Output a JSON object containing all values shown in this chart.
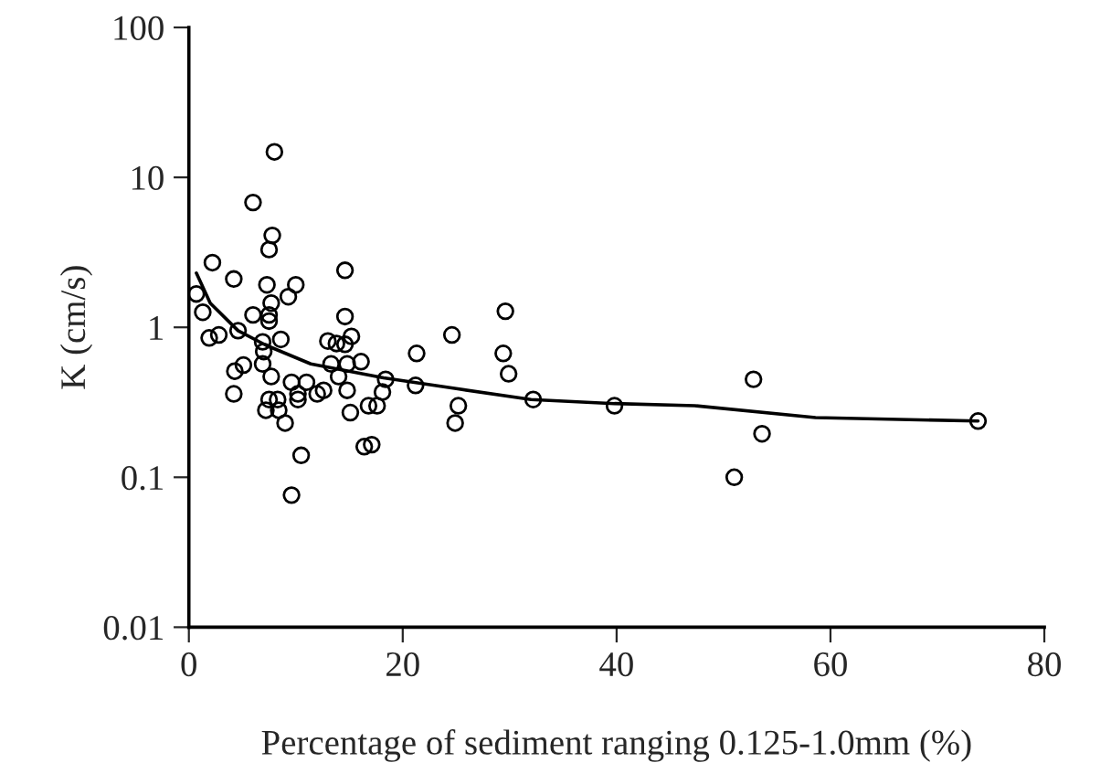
{
  "chart_data": {
    "type": "scatter",
    "xlabel": "Percentage of sediment ranging 0.125-1.0mm (%)",
    "ylabel": "K (cm/s)",
    "log": "y",
    "xlim": [
      0,
      80
    ],
    "xticks": [
      0,
      20,
      40,
      60,
      80
    ],
    "ylim": [
      0.01,
      100
    ],
    "yticks": [
      {
        "value": 0.01,
        "label": "0.01"
      },
      {
        "value": 0.1,
        "label": "0.1"
      },
      1,
      10,
      100
    ],
    "grid": false,
    "legend": false,
    "series": [
      {
        "marker": "circle",
        "color": "#000000",
        "x": [
          0.7,
          1.3,
          1.9,
          2.8,
          4.2,
          4.6,
          4.3,
          5.1,
          4.2,
          7.3,
          6.0,
          7.5,
          7.5,
          7.7,
          9.3,
          10.0,
          6.9,
          7.0,
          8.6,
          6.9,
          7.7,
          9.6,
          11.0,
          10.2,
          10.2,
          12.0,
          12.6,
          7.5,
          8.3,
          7.2,
          8.4,
          9.0,
          10.5,
          9.6,
          13.0,
          13.8,
          14.6,
          15.2,
          14.6,
          13.3,
          14.8,
          16.1,
          14.0,
          14.8,
          15.1,
          16.8,
          17.6,
          18.1,
          18.4,
          16.4,
          17.1,
          21.3,
          21.2,
          8.0,
          6.0,
          7.8,
          7.5,
          2.2,
          14.6,
          24.6,
          25.2,
          24.9,
          29.6,
          29.4,
          29.9,
          32.2,
          39.8,
          52.8,
          53.6,
          51.0,
          73.8
        ],
        "values": [
          1.67,
          1.26,
          0.85,
          0.89,
          2.1,
          0.95,
          0.51,
          0.56,
          0.36,
          1.92,
          1.21,
          1.21,
          1.1,
          1.45,
          1.6,
          1.92,
          0.8,
          0.69,
          0.83,
          0.57,
          0.47,
          0.43,
          0.43,
          0.36,
          0.33,
          0.36,
          0.38,
          0.33,
          0.33,
          0.28,
          0.28,
          0.23,
          0.14,
          0.076,
          0.81,
          0.78,
          0.77,
          0.87,
          1.18,
          0.57,
          0.57,
          0.59,
          0.47,
          0.38,
          0.27,
          0.3,
          0.3,
          0.37,
          0.45,
          0.16,
          0.165,
          0.67,
          0.41,
          14.8,
          6.8,
          4.1,
          3.3,
          2.7,
          2.4,
          0.89,
          0.3,
          0.23,
          1.28,
          0.67,
          0.49,
          0.33,
          0.3,
          0.45,
          0.195,
          0.1,
          0.237
        ]
      },
      {
        "type": "line",
        "marker": "none",
        "line_style": "solid",
        "color": "#000000",
        "x": [
          0.7,
          2.0,
          4.6,
          7.2,
          11.4,
          18.2,
          25.0,
          32.0,
          39.8,
          47.3,
          58.6,
          73.8
        ],
        "values": [
          2.3,
          1.45,
          0.95,
          0.76,
          0.57,
          0.46,
          0.39,
          0.33,
          0.31,
          0.3,
          0.25,
          0.237
        ]
      }
    ]
  }
}
